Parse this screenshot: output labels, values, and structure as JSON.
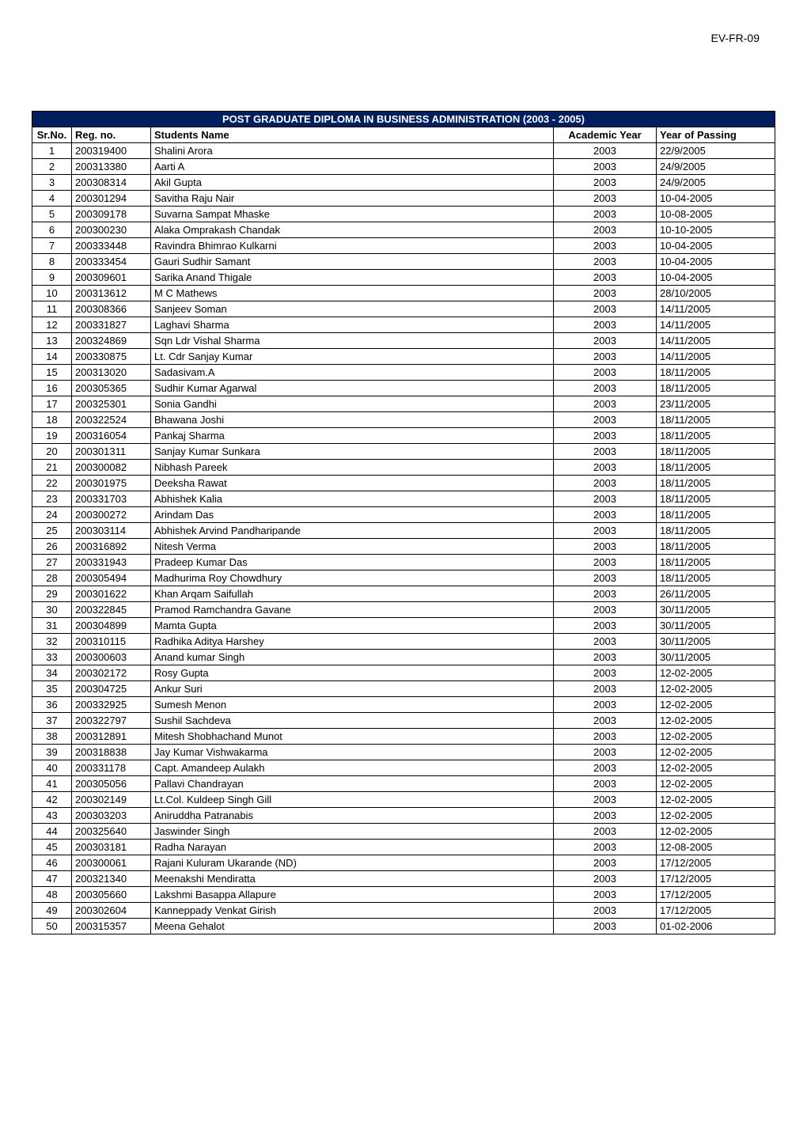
{
  "header_label": "EV-FR-09",
  "table": {
    "title": "POST GRADUATE DIPLOMA IN BUSINESS ADMINISTRATION (2003 - 2005)",
    "title_bg_color": "#001f5f",
    "title_text_color": "#ffffff",
    "columns": [
      {
        "key": "srno",
        "label": "Sr.No."
      },
      {
        "key": "regno",
        "label": "Reg. no."
      },
      {
        "key": "name",
        "label": "Students Name"
      },
      {
        "key": "year",
        "label": "Academic Year"
      },
      {
        "key": "passing",
        "label": "Year of Passing"
      }
    ],
    "rows": [
      {
        "srno": "1",
        "regno": "200319400",
        "name": "Shalini  Arora",
        "year": "2003",
        "passing": "22/9/2005"
      },
      {
        "srno": "2",
        "regno": "200313380",
        "name": "Aarti  A",
        "year": "2003",
        "passing": "24/9/2005"
      },
      {
        "srno": "3",
        "regno": "200308314",
        "name": "Akil  Gupta",
        "year": "2003",
        "passing": "24/9/2005"
      },
      {
        "srno": "4",
        "regno": "200301294",
        "name": "Savitha  Raju  Nair",
        "year": "2003",
        "passing": "10-04-2005"
      },
      {
        "srno": "5",
        "regno": "200309178",
        "name": "Suvarna  Sampat  Mhaske",
        "year": "2003",
        "passing": "10-08-2005"
      },
      {
        "srno": "6",
        "regno": "200300230",
        "name": "Alaka Omprakash Chandak",
        "year": "2003",
        "passing": "10-10-2005"
      },
      {
        "srno": "7",
        "regno": "200333448",
        "name": "Ravindra Bhimrao Kulkarni",
        "year": "2003",
        "passing": "10-04-2005"
      },
      {
        "srno": "8",
        "regno": "200333454",
        "name": "Gauri Sudhir Samant",
        "year": "2003",
        "passing": "10-04-2005"
      },
      {
        "srno": "9",
        "regno": "200309601",
        "name": "Sarika  Anand  Thigale",
        "year": "2003",
        "passing": "10-04-2005"
      },
      {
        "srno": "10",
        "regno": "200313612",
        "name": "M C  Mathews",
        "year": "2003",
        "passing": "28/10/2005"
      },
      {
        "srno": "11",
        "regno": "200308366",
        "name": "Sanjeev    Soman",
        "year": "2003",
        "passing": "14/11/2005"
      },
      {
        "srno": "12",
        "regno": "200331827",
        "name": "Laghavi  Sharma",
        "year": "2003",
        "passing": "14/11/2005"
      },
      {
        "srno": "13",
        "regno": "200324869",
        "name": "Sqn Ldr    Vishal  Sharma",
        "year": "2003",
        "passing": "14/11/2005"
      },
      {
        "srno": "14",
        "regno": "200330875",
        "name": "Lt. Cdr    Sanjay  Kumar",
        "year": "2003",
        "passing": "14/11/2005"
      },
      {
        "srno": "15",
        "regno": "200313020",
        "name": "Sadasivam.A",
        "year": "2003",
        "passing": "18/11/2005"
      },
      {
        "srno": "16",
        "regno": "200305365",
        "name": "Sudhir Kumar Agarwal",
        "year": "2003",
        "passing": "18/11/2005"
      },
      {
        "srno": "17",
        "regno": "200325301",
        "name": "Sonia  Gandhi",
        "year": "2003",
        "passing": "23/11/2005"
      },
      {
        "srno": "18",
        "regno": "200322524",
        "name": "Bhawana  Joshi",
        "year": "2003",
        "passing": "18/11/2005"
      },
      {
        "srno": "19",
        "regno": "200316054",
        "name": "Pankaj  Sharma",
        "year": "2003",
        "passing": "18/11/2005"
      },
      {
        "srno": "20",
        "regno": "200301311",
        "name": "Sanjay Kumar Sunkara",
        "year": "2003",
        "passing": "18/11/2005"
      },
      {
        "srno": "21",
        "regno": "200300082",
        "name": "Nibhash  Pareek",
        "year": "2003",
        "passing": "18/11/2005"
      },
      {
        "srno": "22",
        "regno": "200301975",
        "name": "Deeksha  Rawat",
        "year": "2003",
        "passing": "18/11/2005"
      },
      {
        "srno": "23",
        "regno": "200331703",
        "name": "Abhishek  Kalia",
        "year": "2003",
        "passing": "18/11/2005"
      },
      {
        "srno": "24",
        "regno": "200300272",
        "name": "Arindam  Das",
        "year": "2003",
        "passing": "18/11/2005"
      },
      {
        "srno": "25",
        "regno": "200303114",
        "name": "Abhishek Arvind Pandharipande",
        "year": "2003",
        "passing": "18/11/2005"
      },
      {
        "srno": "26",
        "regno": "200316892",
        "name": "Nitesh  Verma",
        "year": "2003",
        "passing": "18/11/2005"
      },
      {
        "srno": "27",
        "regno": "200331943",
        "name": "Pradeep Kumar  Das",
        "year": "2003",
        "passing": "18/11/2005"
      },
      {
        "srno": "28",
        "regno": "200305494",
        "name": "Madhurima  Roy  Chowdhury",
        "year": "2003",
        "passing": "18/11/2005"
      },
      {
        "srno": "29",
        "regno": "200301622",
        "name": "Khan Arqam Saifullah",
        "year": "2003",
        "passing": "26/11/2005"
      },
      {
        "srno": "30",
        "regno": "200322845",
        "name": "Pramod  Ramchandra  Gavane",
        "year": "2003",
        "passing": "30/11/2005"
      },
      {
        "srno": "31",
        "regno": "200304899",
        "name": "Mamta  Gupta",
        "year": "2003",
        "passing": "30/11/2005"
      },
      {
        "srno": "32",
        "regno": "200310115",
        "name": "Radhika  Aditya  Harshey",
        "year": "2003",
        "passing": "30/11/2005"
      },
      {
        "srno": "33",
        "regno": "200300603",
        "name": "Anand  kumar  Singh",
        "year": "2003",
        "passing": "30/11/2005"
      },
      {
        "srno": "34",
        "regno": "200302172",
        "name": "Rosy  Gupta",
        "year": "2003",
        "passing": "12-02-2005"
      },
      {
        "srno": "35",
        "regno": "200304725",
        "name": "Ankur Suri",
        "year": "2003",
        "passing": "12-02-2005"
      },
      {
        "srno": "36",
        "regno": "200332925",
        "name": "Sumesh  Menon",
        "year": "2003",
        "passing": "12-02-2005"
      },
      {
        "srno": "37",
        "regno": "200322797",
        "name": "Sushil  Sachdeva",
        "year": "2003",
        "passing": "12-02-2005"
      },
      {
        "srno": "38",
        "regno": "200312891",
        "name": "Mitesh  Shobhachand  Munot",
        "year": "2003",
        "passing": "12-02-2005"
      },
      {
        "srno": "39",
        "regno": "200318838",
        "name": "Jay  Kumar  Vishwakarma",
        "year": "2003",
        "passing": "12-02-2005"
      },
      {
        "srno": "40",
        "regno": "200331178",
        "name": "Capt.  Amandeep  Aulakh",
        "year": "2003",
        "passing": "12-02-2005"
      },
      {
        "srno": "41",
        "regno": "200305056",
        "name": "Pallavi  Chandrayan",
        "year": "2003",
        "passing": "12-02-2005"
      },
      {
        "srno": "42",
        "regno": "200302149",
        "name": "Lt.Col.  Kuldeep  Singh  Gill",
        "year": "2003",
        "passing": "12-02-2005"
      },
      {
        "srno": "43",
        "regno": "200303203",
        "name": "Aniruddha  Patranabis",
        "year": "2003",
        "passing": "12-02-2005"
      },
      {
        "srno": "44",
        "regno": "200325640",
        "name": "Jaswinder  Singh",
        "year": "2003",
        "passing": "12-02-2005"
      },
      {
        "srno": "45",
        "regno": "200303181",
        "name": "Radha  Narayan",
        "year": "2003",
        "passing": "12-08-2005"
      },
      {
        "srno": "46",
        "regno": "200300061",
        "name": "Rajani Kuluram Ukarande                    (ND)",
        "year": "2003",
        "passing": "17/12/2005"
      },
      {
        "srno": "47",
        "regno": "200321340",
        "name": "Meenakshi    Mendiratta",
        "year": "2003",
        "passing": "17/12/2005"
      },
      {
        "srno": "48",
        "regno": "200305660",
        "name": "Lakshmi  Basappa  Allapure",
        "year": "2003",
        "passing": "17/12/2005"
      },
      {
        "srno": "49",
        "regno": "200302604",
        "name": "Kanneppady Venkat Girish",
        "year": "2003",
        "passing": "17/12/2005"
      },
      {
        "srno": "50",
        "regno": "200315357",
        "name": "Meena  Gehalot",
        "year": "2003",
        "passing": "01-02-2006"
      }
    ]
  }
}
